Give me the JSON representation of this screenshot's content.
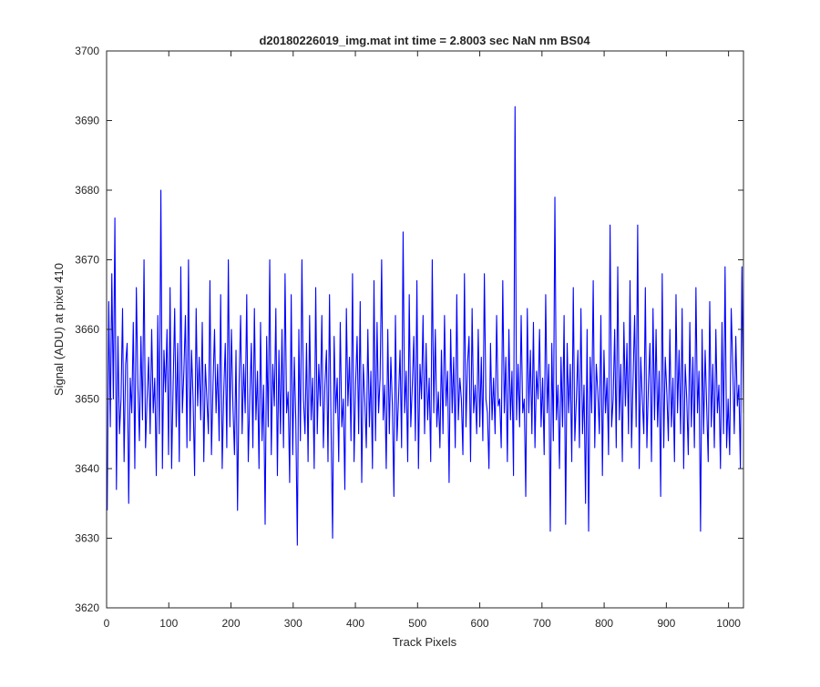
{
  "chart_data": {
    "type": "line",
    "title": "d20180226019_img.mat int time = 2.8003 sec  NaN nm BS04",
    "xlabel": "Track Pixels",
    "ylabel": "Signal (ADU) at pixel 410",
    "xlim": [
      0,
      1024
    ],
    "ylim": [
      3620,
      3700
    ],
    "xticks": [
      0,
      100,
      200,
      300,
      400,
      500,
      600,
      700,
      800,
      900,
      1000
    ],
    "yticks": [
      3620,
      3630,
      3640,
      3650,
      3660,
      3670,
      3680,
      3690,
      3700
    ],
    "grid": false,
    "line_color": "#0000ff",
    "series": [
      {
        "x_start": 1,
        "x_step": 1,
        "values": [
          3634,
          3664,
          3646,
          3668,
          3650,
          3676,
          3637,
          3659,
          3645,
          3650,
          3663,
          3641,
          3655,
          3658,
          3635,
          3653,
          3648,
          3661,
          3640,
          3666,
          3652,
          3644,
          3659,
          3647,
          3670,
          3643,
          3650,
          3656,
          3645,
          3660,
          3648,
          3653,
          3639,
          3662,
          3645,
          3680,
          3640,
          3657,
          3651,
          3660,
          3642,
          3666,
          3640,
          3652,
          3663,
          3646,
          3658,
          3641,
          3669,
          3648,
          3654,
          3662,
          3643,
          3670,
          3644,
          3657,
          3650,
          3639,
          3663,
          3649,
          3656,
          3647,
          3661,
          3641,
          3655,
          3650,
          3645,
          3667,
          3642,
          3652,
          3660,
          3648,
          3655,
          3644,
          3665,
          3640,
          3651,
          3658,
          3643,
          3670,
          3646,
          3660,
          3649,
          3642,
          3657,
          3634,
          3652,
          3662,
          3645,
          3655,
          3648,
          3665,
          3641,
          3650,
          3658,
          3643,
          3663,
          3647,
          3654,
          3640,
          3661,
          3644,
          3652,
          3632,
          3659,
          3646,
          3670,
          3642,
          3655,
          3649,
          3663,
          3639,
          3657,
          3645,
          3660,
          3643,
          3668,
          3648,
          3651,
          3638,
          3665,
          3642,
          3656,
          3647,
          3629,
          3660,
          3644,
          3670,
          3650,
          3645,
          3658,
          3641,
          3662,
          3647,
          3653,
          3640,
          3666,
          3645,
          3655,
          3649,
          3662,
          3643,
          3652,
          3657,
          3641,
          3665,
          3646,
          3630,
          3659,
          3648,
          3653,
          3641,
          3661,
          3646,
          3650,
          3637,
          3663,
          3649,
          3656,
          3644,
          3668,
          3641,
          3652,
          3659,
          3645,
          3664,
          3638,
          3655,
          3650,
          3643,
          3660,
          3646,
          3654,
          3640,
          3667,
          3644,
          3661,
          3648,
          3653,
          3670,
          3647,
          3652,
          3640,
          3660,
          3645,
          3656,
          3649,
          3636,
          3662,
          3644,
          3650,
          3657,
          3643,
          3674,
          3648,
          3654,
          3641,
          3665,
          3646,
          3652,
          3659,
          3644,
          3667,
          3640,
          3655,
          3650,
          3662,
          3645,
          3658,
          3647,
          3653,
          3641,
          3670,
          3648,
          3660,
          3646,
          3651,
          3643,
          3657,
          3645,
          3662,
          3649,
          3654,
          3638,
          3660,
          3648,
          3656,
          3643,
          3665,
          3647,
          3653,
          3650,
          3642,
          3668,
          3646,
          3655,
          3659,
          3641,
          3663,
          3648,
          3652,
          3645,
          3660,
          3646,
          3656,
          3644,
          3668,
          3650,
          3648,
          3640,
          3658,
          3647,
          3653,
          3645,
          3662,
          3649,
          3650,
          3643,
          3667,
          3648,
          3656,
          3641,
          3660,
          3647,
          3654,
          3639,
          3692,
          3647,
          3655,
          3646,
          3662,
          3648,
          3650,
          3636,
          3663,
          3648,
          3657,
          3645,
          3661,
          3643,
          3654,
          3650,
          3660,
          3646,
          3653,
          3642,
          3665,
          3648,
          3655,
          3631,
          3658,
          3644,
          3679,
          3647,
          3652,
          3640,
          3656,
          3646,
          3662,
          3632,
          3658,
          3648,
          3655,
          3641,
          3666,
          3644,
          3650,
          3657,
          3643,
          3663,
          3645,
          3652,
          3635,
          3660,
          3631,
          3656,
          3648,
          3667,
          3643,
          3655,
          3651,
          3645,
          3662,
          3639,
          3657,
          3648,
          3653,
          3642,
          3675,
          3646,
          3650,
          3660,
          3643,
          3669,
          3647,
          3655,
          3641,
          3661,
          3649,
          3658,
          3645,
          3667,
          3643,
          3653,
          3662,
          3646,
          3675,
          3640,
          3656,
          3650,
          3645,
          3666,
          3643,
          3652,
          3658,
          3641,
          3663,
          3647,
          3660,
          3646,
          3654,
          3636,
          3668,
          3643,
          3656,
          3651,
          3644,
          3660,
          3646,
          3653,
          3641,
          3665,
          3648,
          3657,
          3645,
          3663,
          3640,
          3655,
          3650,
          3642,
          3661,
          3646,
          3656,
          3643,
          3666,
          3648,
          3654,
          3631,
          3660,
          3645,
          3657,
          3649,
          3641,
          3664,
          3646,
          3655,
          3643,
          3660,
          3648,
          3652,
          3640,
          3661,
          3645,
          3669,
          3643,
          3650,
          3642,
          3663,
          3655,
          3645,
          3659,
          3649,
          3652,
          3640,
          3669,
          3648
        ]
      }
    ]
  }
}
